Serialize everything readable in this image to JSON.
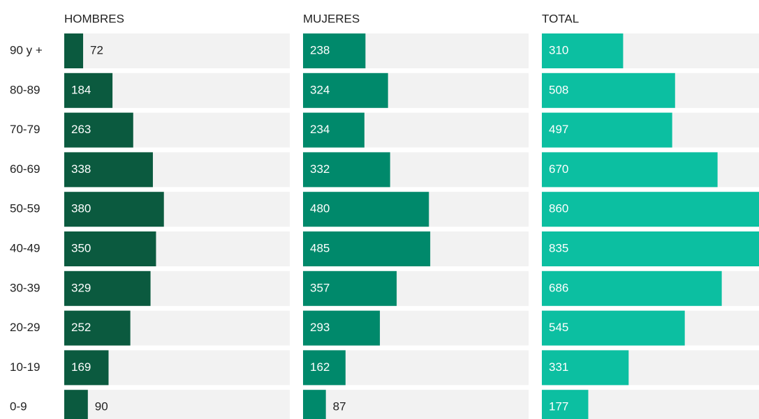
{
  "chart_data": {
    "type": "bar",
    "orientation": "horizontal",
    "categories": [
      "90 y +",
      "80-89",
      "70-79",
      "60-69",
      "50-59",
      "40-49",
      "30-39",
      "20-29",
      "10-19",
      "0-9"
    ],
    "series": [
      {
        "name": "HOMBRES",
        "color": "#0b5a3f",
        "values": [
          72,
          184,
          263,
          338,
          380,
          350,
          329,
          252,
          169,
          90
        ]
      },
      {
        "name": "MUJERES",
        "color": "#00896b",
        "values": [
          238,
          324,
          234,
          332,
          480,
          485,
          357,
          293,
          162,
          87
        ]
      },
      {
        "name": "TOTAL",
        "color": "#0cbfa1",
        "values": [
          310,
          508,
          497,
          670,
          860,
          835,
          686,
          545,
          331,
          177
        ]
      }
    ],
    "xlim": [
      0,
      860
    ]
  }
}
